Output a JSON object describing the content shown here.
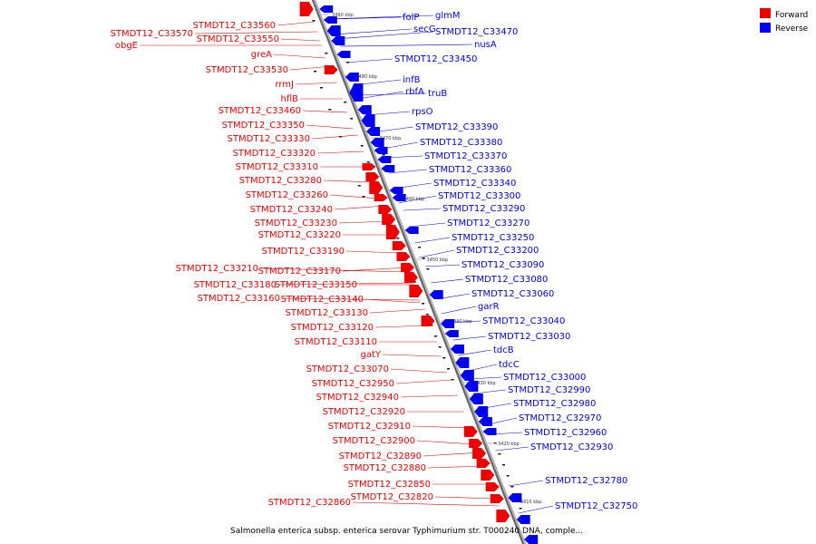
{
  "caption": "Salmonella enterica subsp. enterica serovar Typhimurium str. T000240 DNA, comple...",
  "legend": [
    {
      "label": "Forward",
      "color": "#ee0000"
    },
    {
      "label": "Reverse",
      "color": "#0000ee"
    }
  ],
  "colors": {
    "forward": "#ee0000",
    "reverse": "#0000ee",
    "axis": "#999999"
  },
  "ticks": [
    "3490 kbp",
    "3480 kbp",
    "3470 kbp",
    "3460 kbp",
    "3450 kbp",
    "3440 kbp",
    "3430 kbp",
    "3420 kbp",
    "3410 kbp"
  ],
  "forward_labels": [
    "STMDT12_C33560",
    "STMDT12_C33570",
    "obgE",
    "STMDT12_C33550",
    "greA",
    "STMDT12_C33530",
    "rrmJ",
    "hflB",
    "STMDT12_C33460",
    "STMDT12_C33350",
    "STMDT12_C33330",
    "STMDT12_C33320",
    "STMDT12_C33310",
    "STMDT12_C33280",
    "STMDT12_C33260",
    "STMDT12_C33240",
    "STMDT12_C33230",
    "STMDT12_C33220",
    "STMDT12_C33190",
    "STMDT12_C33210",
    "STMDT12_C33170",
    "STMDT12_C33180",
    "STMDT12_C33150",
    "STMDT12_C33160",
    "STMDT12_C33140",
    "STMDT12_C33130",
    "STMDT12_C33120",
    "STMDT12_C33110",
    "gatY",
    "STMDT12_C33070",
    "STMDT12_C32950",
    "STMDT12_C32940",
    "STMDT12_C32920",
    "STMDT12_C32910",
    "STMDT12_C32900",
    "STMDT12_C32890",
    "STMDT12_C32880",
    "STMDT12_C32850",
    "STMDT12_C32820",
    "STMDT12_C32860"
  ],
  "reverse_labels": [
    "folP",
    "glmM",
    "secG",
    "STMDT12_C33470",
    "nusA",
    "STMDT12_C33450",
    "infB",
    "rbfA",
    "truB",
    "rpsO",
    "STMDT12_C33390",
    "STMDT12_C33380",
    "STMDT12_C33370",
    "STMDT12_C33360",
    "STMDT12_C33340",
    "STMDT12_C33300",
    "STMDT12_C33290",
    "STMDT12_C33270",
    "STMDT12_C33250",
    "STMDT12_C33200",
    "STMDT12_C33090",
    "STMDT12_C33080",
    "STMDT12_C33060",
    "garR",
    "STMDT12_C33040",
    "STMDT12_C33030",
    "tdcB",
    "tdcC",
    "STMDT12_C33000",
    "STMDT12_C32990",
    "STMDT12_C32980",
    "STMDT12_C32970",
    "STMDT12_C32960",
    "STMDT12_C32930",
    "STMDT12_C32780",
    "STMDT12_C32750"
  ]
}
